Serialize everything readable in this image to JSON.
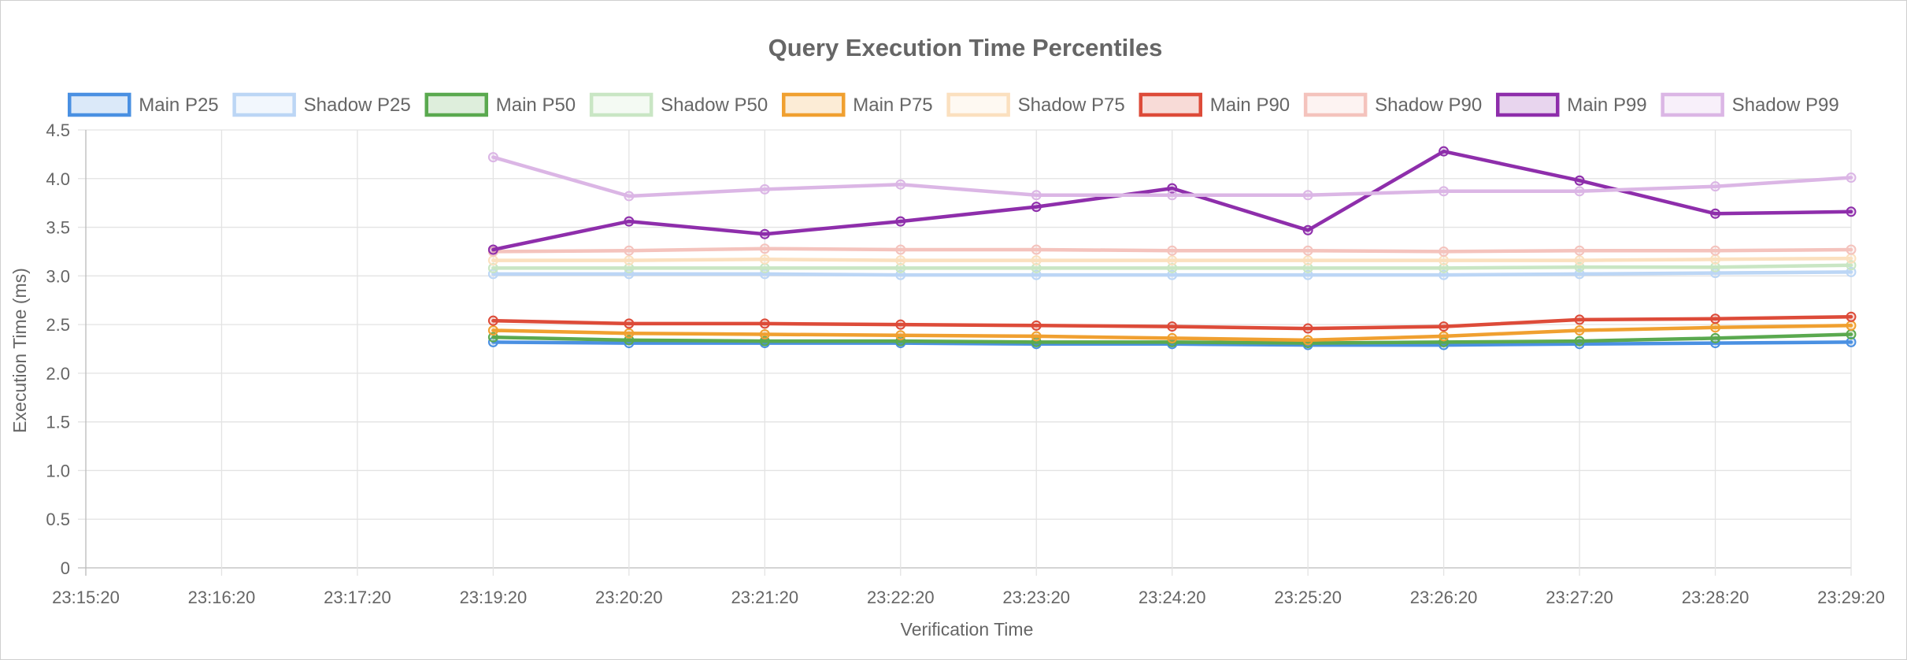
{
  "chart_data": {
    "type": "line",
    "title": "Query Execution Time Percentiles",
    "xlabel": "Verification Time",
    "ylabel": "Execution Time (ms)",
    "ylim": [
      0,
      4.5
    ],
    "y_ticks": [
      "0",
      "0.5",
      "1.0",
      "1.5",
      "2.0",
      "2.5",
      "3.0",
      "3.5",
      "4.0",
      "4.5"
    ],
    "x_ticks": [
      "23:15:20",
      "23:16:20",
      "23:17:20",
      "23:19:20",
      "23:20:20",
      "23:21:20",
      "23:22:20",
      "23:23:20",
      "23:24:20",
      "23:25:20",
      "23:26:20",
      "23:27:20",
      "23:28:20",
      "23:29:20"
    ],
    "x": [
      "23:19:20",
      "23:20:20",
      "23:21:20",
      "23:22:20",
      "23:23:20",
      "23:24:20",
      "23:25:20",
      "23:26:20",
      "23:27:20",
      "23:28:20",
      "23:29:20"
    ],
    "grid": true,
    "legend_position": "top",
    "series": [
      {
        "name": "Main P25",
        "color": "#4a90e2",
        "values": [
          2.32,
          2.31,
          2.31,
          2.31,
          2.3,
          2.3,
          2.29,
          2.29,
          2.3,
          2.31,
          2.32
        ]
      },
      {
        "name": "Shadow P25",
        "color": "#bcd6f5",
        "values": [
          3.02,
          3.02,
          3.02,
          3.01,
          3.01,
          3.01,
          3.01,
          3.01,
          3.02,
          3.03,
          3.04
        ]
      },
      {
        "name": "Main P50",
        "color": "#5aa94f",
        "values": [
          2.37,
          2.34,
          2.33,
          2.33,
          2.32,
          2.32,
          2.31,
          2.32,
          2.33,
          2.36,
          2.4
        ]
      },
      {
        "name": "Shadow P50",
        "color": "#c9e6c4",
        "values": [
          3.08,
          3.08,
          3.08,
          3.08,
          3.08,
          3.08,
          3.08,
          3.08,
          3.09,
          3.09,
          3.11
        ]
      },
      {
        "name": "Main P75",
        "color": "#f0a030",
        "values": [
          2.44,
          2.41,
          2.4,
          2.39,
          2.38,
          2.36,
          2.34,
          2.38,
          2.44,
          2.47,
          2.49
        ]
      },
      {
        "name": "Shadow P75",
        "color": "#fbe0bf",
        "values": [
          3.16,
          3.16,
          3.17,
          3.16,
          3.16,
          3.16,
          3.16,
          3.16,
          3.16,
          3.17,
          3.18
        ]
      },
      {
        "name": "Main P90",
        "color": "#dd4b39",
        "values": [
          2.54,
          2.51,
          2.51,
          2.5,
          2.49,
          2.48,
          2.46,
          2.48,
          2.55,
          2.56,
          2.58
        ]
      },
      {
        "name": "Shadow P90",
        "color": "#f4c3bd",
        "values": [
          3.25,
          3.26,
          3.28,
          3.27,
          3.27,
          3.26,
          3.26,
          3.25,
          3.26,
          3.26,
          3.27
        ]
      },
      {
        "name": "Main P99",
        "color": "#8e2eab",
        "values": [
          3.27,
          3.56,
          3.43,
          3.56,
          3.71,
          3.9,
          3.47,
          4.28,
          3.98,
          3.64,
          3.66
        ]
      },
      {
        "name": "Shadow P99",
        "color": "#dbb6e5",
        "values": [
          4.22,
          3.82,
          3.89,
          3.94,
          3.83,
          3.83,
          3.83,
          3.87,
          3.87,
          3.92,
          4.01
        ]
      }
    ]
  }
}
